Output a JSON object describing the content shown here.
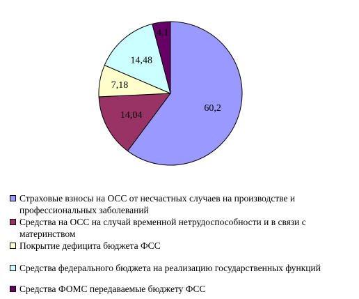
{
  "chart_data": {
    "type": "pie",
    "title": "",
    "slices": [
      {
        "label": "Страховые взносы на ОСС от несчастных случаев на производстве и профессиональных заболеваний",
        "value": 60.2,
        "value_label": "60,2",
        "color": "#9999ff"
      },
      {
        "label": "Средства на ОСС на случай временной нетрудоспособности и в связи с материнством",
        "value": 14.04,
        "value_label": "14,04",
        "color": "#993366"
      },
      {
        "label": "Покрытие дефицита бюджета ФСС",
        "value": 7.18,
        "value_label": "7,18",
        "color": "#ffffcc"
      },
      {
        "label": "Средства федерального бюджета на реализацию государственных функций",
        "value": 14.48,
        "value_label": "14,48",
        "color": "#ccffff"
      },
      {
        "label": "Средства ФОМС передаваемые бюджету ФСС",
        "value": 4.1,
        "value_label": "4,1",
        "color": "#660066"
      }
    ],
    "legend_position": "bottom"
  }
}
